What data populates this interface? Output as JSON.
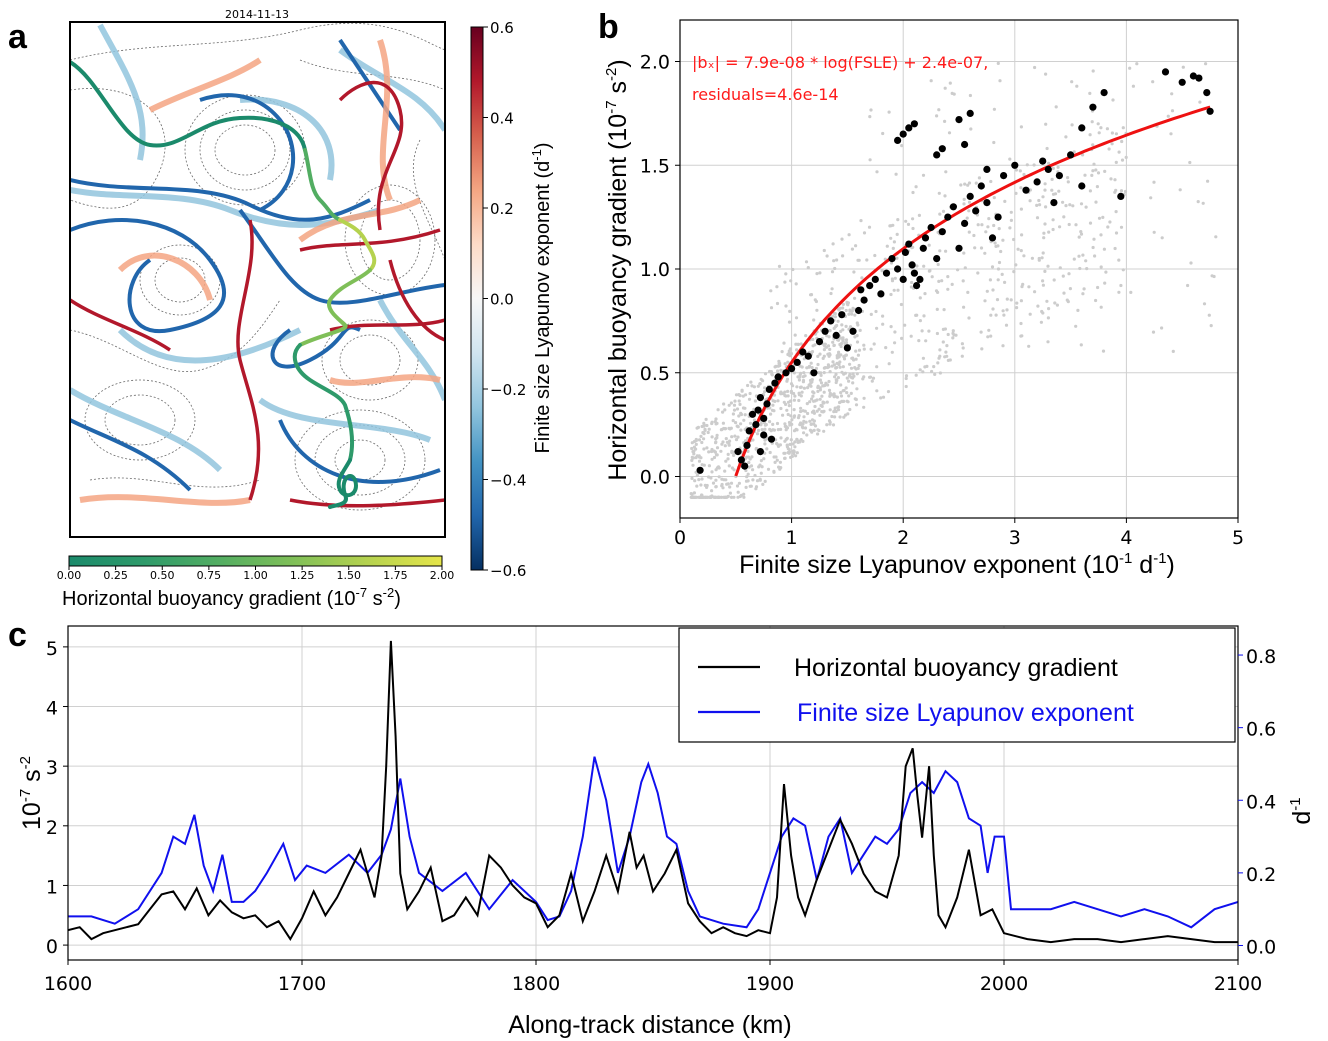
{
  "panels": {
    "a": {
      "letter": "a",
      "date_title": "2014-11-13",
      "colorbar_fsle": {
        "label": "Finite size Lyapunov exponent (d",
        "label_sup": "-1",
        "label_end": ")",
        "ticks": [
          "0.6",
          "0.4",
          "0.2",
          "0.0",
          "−0.2",
          "−0.4",
          "−0.6"
        ],
        "colors": [
          "#67001f",
          "#b2182b",
          "#d6604d",
          "#f4a582",
          "#fddbc7",
          "#f7f7f7",
          "#d1e5f0",
          "#92c5de",
          "#4393c3",
          "#2166ac",
          "#053061"
        ]
      },
      "colorbar_buoy": {
        "label": "Horizontal buoyancy gradient (10",
        "label_sup1": "-7",
        "label_mid": " s",
        "label_sup2": "-2",
        "label_end": ")",
        "ticks": [
          "0.00",
          "0.25",
          "0.50",
          "0.75",
          "1.00",
          "1.25",
          "1.50",
          "1.75",
          "2.00"
        ],
        "colors": [
          "#1b8a6b",
          "#2e9a6a",
          "#52ad62",
          "#7fbf58",
          "#b5d24f",
          "#e5e54a"
        ]
      }
    },
    "b": {
      "letter": "b",
      "annotation_line1": "|bₓ| = 7.9e-08 * log(FSLE) + 2.4e-07,",
      "annotation_line2": "residuals=4.6e-14",
      "colors": {
        "fit": "#ee1111",
        "points": "#000000",
        "background_points": "#cccccc"
      }
    },
    "c": {
      "letter": "c",
      "legend_black": "Horizontal buoyancy gradient",
      "legend_blue": "Finite size Lyapunov exponent",
      "colors": {
        "black": "#000000",
        "blue": "#1010ee"
      }
    }
  },
  "chart_data": [
    {
      "type": "scatter",
      "panel": "b",
      "xlabel": "Finite size Lyapunov exponent (10⁻¹ d⁻¹)",
      "ylabel": "Horizontal buoyancy gradient (10⁻⁷ s⁻²)",
      "xlim": [
        0,
        5
      ],
      "ylim": [
        -0.2,
        2.2
      ],
      "xticks": [
        "0",
        "1",
        "2",
        "3",
        "4",
        "5"
      ],
      "yticks": [
        "0.0",
        "0.5",
        "1.0",
        "1.5",
        "2.0"
      ],
      "grid": true,
      "fit": {
        "a": 0.79,
        "b": 0.55,
        "x_from": 0.5,
        "x_to": 4.75
      },
      "series": [
        {
          "x": [
            0.18,
            0.52,
            0.55,
            0.58,
            0.6,
            0.62,
            0.65,
            0.68,
            0.7,
            0.72,
            0.75,
            0.78,
            0.8,
            0.82,
            0.72,
            0.75,
            0.85,
            0.88,
            0.95,
            1.0,
            1.05,
            1.1,
            1.15,
            1.2,
            1.25,
            1.3,
            1.35,
            1.4,
            1.45,
            1.5,
            1.55,
            1.6,
            1.62,
            1.65,
            1.7,
            1.75,
            1.8,
            1.85,
            1.9,
            1.95,
            2.0,
            2.02,
            2.05,
            2.08,
            2.1,
            2.12,
            2.15,
            2.18,
            2.2,
            2.25,
            2.3,
            2.35,
            2.4,
            2.45,
            2.5,
            2.55,
            2.6,
            2.65,
            2.7,
            2.75,
            2.8,
            2.85,
            2.9,
            3.0,
            3.1,
            3.2,
            3.3,
            3.35,
            3.4,
            3.5,
            3.6,
            3.7,
            3.8,
            3.95,
            4.35,
            4.5,
            4.6,
            4.65,
            4.72,
            4.75,
            1.95,
            2.0,
            2.05,
            2.1,
            2.3,
            2.35,
            2.5,
            2.55,
            2.6,
            2.75,
            3.25,
            3.6
          ],
          "y": [
            0.03,
            0.12,
            0.08,
            0.05,
            0.15,
            0.22,
            0.3,
            0.25,
            0.32,
            0.38,
            0.28,
            0.35,
            0.42,
            0.18,
            0.12,
            0.2,
            0.45,
            0.48,
            0.5,
            0.52,
            0.55,
            0.6,
            0.58,
            0.5,
            0.65,
            0.7,
            0.75,
            0.68,
            0.78,
            0.62,
            0.7,
            0.8,
            0.9,
            0.85,
            0.92,
            0.95,
            0.88,
            0.98,
            1.05,
            1.0,
            0.95,
            1.08,
            1.12,
            1.02,
            0.98,
            0.92,
            0.95,
            1.1,
            1.15,
            1.2,
            1.05,
            1.18,
            1.25,
            1.3,
            1.1,
            1.22,
            1.35,
            1.28,
            1.4,
            1.32,
            1.15,
            1.25,
            1.45,
            1.5,
            1.38,
            1.42,
            1.48,
            1.32,
            1.45,
            1.55,
            1.4,
            1.78,
            1.85,
            1.35,
            1.95,
            1.9,
            1.93,
            1.92,
            1.85,
            1.76,
            1.62,
            1.65,
            1.68,
            1.7,
            1.55,
            1.58,
            1.72,
            1.6,
            1.75,
            1.48,
            1.52,
            1.68
          ]
        }
      ]
    },
    {
      "type": "line",
      "panel": "c",
      "xlabel": "Along-track distance (km)",
      "ylabel_left": "10⁻⁷ s⁻²",
      "ylabel_right": "d⁻¹",
      "xlim": [
        1600,
        2100
      ],
      "ylim_left": [
        -0.25,
        5.35
      ],
      "ylim_right": [
        -0.04,
        0.88
      ],
      "xticks": [
        "1600",
        "1700",
        "1800",
        "1900",
        "2000",
        "2100"
      ],
      "yticks_left": [
        "0",
        "1",
        "2",
        "3",
        "4",
        "5"
      ],
      "yticks_right": [
        "0.0",
        "0.2",
        "0.4",
        "0.6",
        "0.8"
      ],
      "grid": true,
      "legend_position": "top-right",
      "series": [
        {
          "name": "Horizontal buoyancy gradient",
          "axis": "left",
          "x": [
            1600,
            1605,
            1610,
            1615,
            1620,
            1625,
            1630,
            1635,
            1640,
            1645,
            1650,
            1655,
            1660,
            1665,
            1670,
            1675,
            1680,
            1685,
            1690,
            1695,
            1700,
            1705,
            1710,
            1715,
            1720,
            1725,
            1728,
            1731,
            1734,
            1736,
            1738,
            1740,
            1742,
            1745,
            1750,
            1755,
            1760,
            1765,
            1770,
            1775,
            1780,
            1785,
            1790,
            1795,
            1800,
            1805,
            1810,
            1815,
            1820,
            1825,
            1830,
            1835,
            1840,
            1843,
            1846,
            1850,
            1855,
            1860,
            1865,
            1870,
            1875,
            1880,
            1885,
            1890,
            1895,
            1900,
            1903,
            1906,
            1909,
            1912,
            1915,
            1920,
            1925,
            1930,
            1935,
            1940,
            1945,
            1950,
            1955,
            1958,
            1961,
            1963,
            1965,
            1968,
            1970,
            1972,
            1975,
            1980,
            1985,
            1990,
            1995,
            2000,
            2010,
            2020,
            2030,
            2040,
            2050,
            2060,
            2070,
            2080,
            2090,
            2100
          ],
          "y": [
            0.25,
            0.3,
            0.1,
            0.2,
            0.25,
            0.3,
            0.35,
            0.6,
            0.85,
            0.9,
            0.6,
            0.95,
            0.5,
            0.75,
            0.55,
            0.45,
            0.5,
            0.3,
            0.4,
            0.1,
            0.45,
            0.9,
            0.5,
            0.8,
            1.2,
            1.6,
            1.2,
            0.8,
            1.5,
            3.0,
            5.1,
            3.5,
            1.2,
            0.6,
            0.9,
            1.3,
            0.4,
            0.5,
            0.8,
            0.5,
            1.5,
            1.3,
            1.0,
            0.8,
            0.7,
            0.3,
            0.5,
            1.2,
            0.4,
            0.9,
            1.5,
            0.9,
            1.9,
            1.3,
            1.5,
            0.9,
            1.2,
            1.6,
            0.7,
            0.4,
            0.2,
            0.3,
            0.2,
            0.15,
            0.25,
            0.2,
            0.8,
            2.7,
            1.5,
            0.8,
            0.5,
            1.1,
            1.6,
            2.1,
            1.7,
            1.2,
            0.9,
            0.8,
            1.5,
            3.0,
            3.3,
            2.5,
            1.8,
            3.0,
            1.5,
            0.5,
            0.3,
            0.8,
            1.6,
            0.5,
            0.6,
            0.2,
            0.1,
            0.05,
            0.1,
            0.1,
            0.05,
            0.1,
            0.15,
            0.1,
            0.05,
            0.05
          ]
        },
        {
          "name": "Finite size Lyapunov exponent",
          "axis": "right",
          "x": [
            1600,
            1610,
            1620,
            1630,
            1640,
            1645,
            1650,
            1654,
            1658,
            1662,
            1666,
            1670,
            1675,
            1680,
            1685,
            1692,
            1697,
            1702,
            1710,
            1720,
            1728,
            1734,
            1738,
            1742,
            1746,
            1750,
            1760,
            1770,
            1780,
            1790,
            1800,
            1805,
            1810,
            1815,
            1820,
            1825,
            1830,
            1835,
            1840,
            1845,
            1848,
            1852,
            1856,
            1860,
            1865,
            1870,
            1880,
            1890,
            1895,
            1900,
            1905,
            1910,
            1915,
            1920,
            1925,
            1930,
            1935,
            1940,
            1945,
            1950,
            1955,
            1960,
            1965,
            1970,
            1975,
            1980,
            1985,
            1990,
            1993,
            1996,
            2000,
            2003,
            2010,
            2020,
            2030,
            2040,
            2050,
            2060,
            2070,
            2080,
            2090,
            2100
          ],
          "y": [
            0.08,
            0.08,
            0.06,
            0.1,
            0.2,
            0.3,
            0.28,
            0.36,
            0.22,
            0.15,
            0.25,
            0.12,
            0.12,
            0.15,
            0.2,
            0.28,
            0.18,
            0.22,
            0.2,
            0.25,
            0.2,
            0.25,
            0.32,
            0.46,
            0.3,
            0.2,
            0.15,
            0.2,
            0.1,
            0.18,
            0.12,
            0.07,
            0.08,
            0.15,
            0.3,
            0.52,
            0.4,
            0.2,
            0.3,
            0.45,
            0.5,
            0.42,
            0.3,
            0.28,
            0.15,
            0.08,
            0.06,
            0.05,
            0.1,
            0.2,
            0.3,
            0.35,
            0.33,
            0.18,
            0.3,
            0.35,
            0.2,
            0.25,
            0.3,
            0.28,
            0.32,
            0.42,
            0.45,
            0.42,
            0.48,
            0.45,
            0.35,
            0.33,
            0.2,
            0.3,
            0.3,
            0.1,
            0.1,
            0.1,
            0.12,
            0.1,
            0.08,
            0.1,
            0.08,
            0.05,
            0.1,
            0.12
          ]
        }
      ]
    }
  ]
}
